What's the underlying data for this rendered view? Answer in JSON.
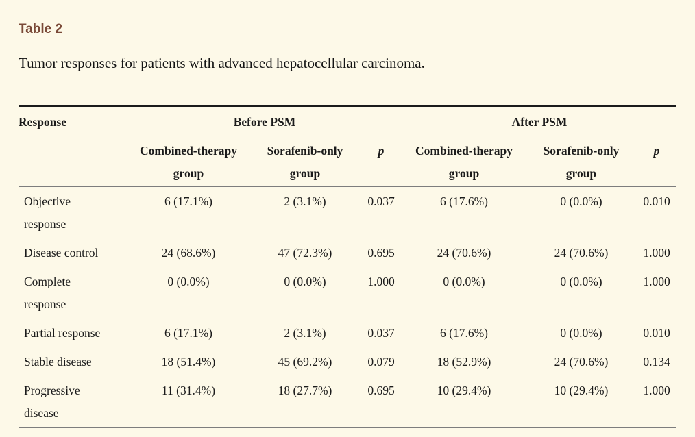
{
  "page": {
    "title": "Table 2",
    "caption": "Tumor responses for patients with advanced hepatocellular carcinoma."
  },
  "table": {
    "corner_header": "Response",
    "group_headers": [
      "Before PSM",
      "After PSM"
    ],
    "sub_headers": [
      "Combined-therapy\ngroup",
      "Sorafenib-only\ngroup",
      "p",
      "Combined-therapy\ngroup",
      "Sorafenib-only\ngroup",
      "p"
    ],
    "rows": [
      {
        "label": "Objective\nresponse",
        "cells": [
          "6 (17.1%)",
          "2 (3.1%)",
          "0.037",
          "6 (17.6%)",
          "0 (0.0%)",
          "0.010"
        ]
      },
      {
        "label": "Disease control",
        "cells": [
          "24 (68.6%)",
          "47 (72.3%)",
          "0.695",
          "24 (70.6%)",
          "24 (70.6%)",
          "1.000"
        ]
      },
      {
        "label": "Complete\nresponse",
        "cells": [
          "0 (0.0%)",
          "0 (0.0%)",
          "1.000",
          "0 (0.0%)",
          "0 (0.0%)",
          "1.000"
        ]
      },
      {
        "label": "Partial response",
        "cells": [
          "6 (17.1%)",
          "2 (3.1%)",
          "0.037",
          "6 (17.6%)",
          "0 (0.0%)",
          "0.010"
        ]
      },
      {
        "label": "Stable disease",
        "cells": [
          "18 (51.4%)",
          "45 (69.2%)",
          "0.079",
          "18 (52.9%)",
          "24 (70.6%)",
          "0.134"
        ]
      },
      {
        "label": "Progressive\ndisease",
        "cells": [
          "11 (31.4%)",
          "18 (27.7%)",
          "0.695",
          "10 (29.4%)",
          "10 (29.4%)",
          "1.000"
        ]
      }
    ]
  },
  "colors": {
    "background": "#FDF9E8",
    "title_accent": "#7A4A38",
    "text": "#1B1B1B",
    "rule_heavy": "#1B1B1B",
    "rule_light": "#7D7D7D"
  }
}
